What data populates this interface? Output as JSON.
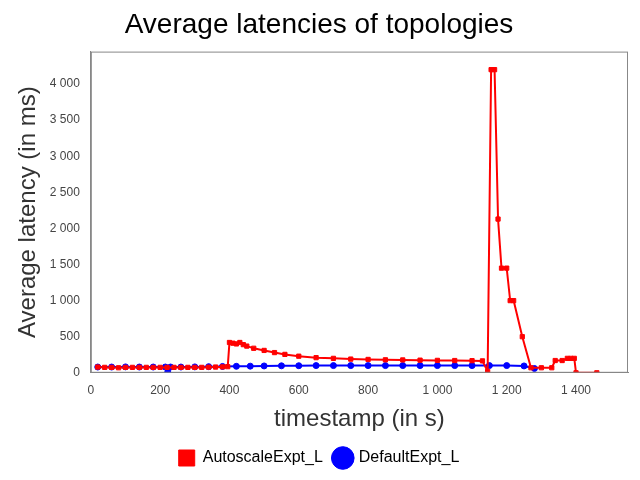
{
  "chart_data": {
    "type": "line",
    "title": "Average latencies of topologies",
    "x_label": "timestamp (in s)",
    "y_label": "Average latency (in ms)",
    "xlim": [
      0,
      1550
    ],
    "xticks": [
      0,
      200,
      400,
      600,
      800,
      {
        "value": 1000,
        "label": "1 000"
      },
      {
        "value": 1200,
        "label": "1 200"
      },
      {
        "value": 1400,
        "label": "1 400"
      }
    ],
    "ylim": [
      0,
      4450
    ],
    "yticks": [
      0,
      500,
      {
        "value": 1000,
        "label": "1 000"
      },
      {
        "value": 1500,
        "label": "1 500"
      },
      {
        "value": 2000,
        "label": "2 000"
      },
      {
        "value": 2500,
        "label": "2 500"
      },
      {
        "value": 3000,
        "label": "3 000"
      },
      {
        "value": 3500,
        "label": "3 500"
      },
      {
        "value": 4000,
        "label": "4 000"
      }
    ],
    "grid": false,
    "legend": "bottom",
    "series": [
      {
        "name": "AutoscaleExpt_L",
        "color": "#ff0000",
        "marker": "square",
        "x": [
          20,
          40,
          60,
          80,
          100,
          120,
          140,
          160,
          180,
          200,
          220,
          240,
          260,
          280,
          300,
          320,
          340,
          360,
          380,
          395,
          400,
          410,
          420,
          430,
          440,
          450,
          470,
          500,
          530,
          560,
          600,
          650,
          700,
          750,
          800,
          850,
          900,
          950,
          1000,
          1050,
          1100,
          1130,
          1145,
          1155,
          1165,
          1175,
          1185,
          1200,
          1210,
          1220,
          1245,
          1270,
          1300,
          1330,
          1340,
          1360,
          1375,
          1385,
          1395,
          1400,
          1460
        ],
        "values": [
          80,
          75,
          75,
          70,
          75,
          75,
          75,
          75,
          75,
          75,
          75,
          75,
          75,
          75,
          75,
          75,
          78,
          80,
          82,
          85,
          420,
          410,
          400,
          420,
          390,
          370,
          340,
          310,
          280,
          255,
          230,
          210,
          200,
          190,
          185,
          180,
          178,
          175,
          172,
          170,
          168,
          165,
          20,
          4200,
          4200,
          2130,
          1450,
          1450,
          1000,
          1000,
          500,
          70,
          70,
          70,
          170,
          170,
          200,
          200,
          200,
          0,
          0
        ]
      },
      {
        "name": "DefaultExpt_L",
        "color": "#0000ff",
        "marker": "circle",
        "x": [
          20,
          60,
          100,
          140,
          180,
          215,
          222,
          230,
          260,
          300,
          340,
          380,
          420,
          460,
          500,
          550,
          600,
          650,
          700,
          750,
          800,
          850,
          900,
          950,
          1000,
          1050,
          1100,
          1150,
          1200,
          1250,
          1280
        ],
        "values": [
          80,
          80,
          82,
          80,
          80,
          80,
          10,
          80,
          80,
          82,
          85,
          88,
          90,
          92,
          95,
          97,
          98,
          100,
          100,
          100,
          100,
          100,
          100,
          100,
          100,
          100,
          100,
          100,
          100,
          95,
          60
        ]
      }
    ]
  }
}
